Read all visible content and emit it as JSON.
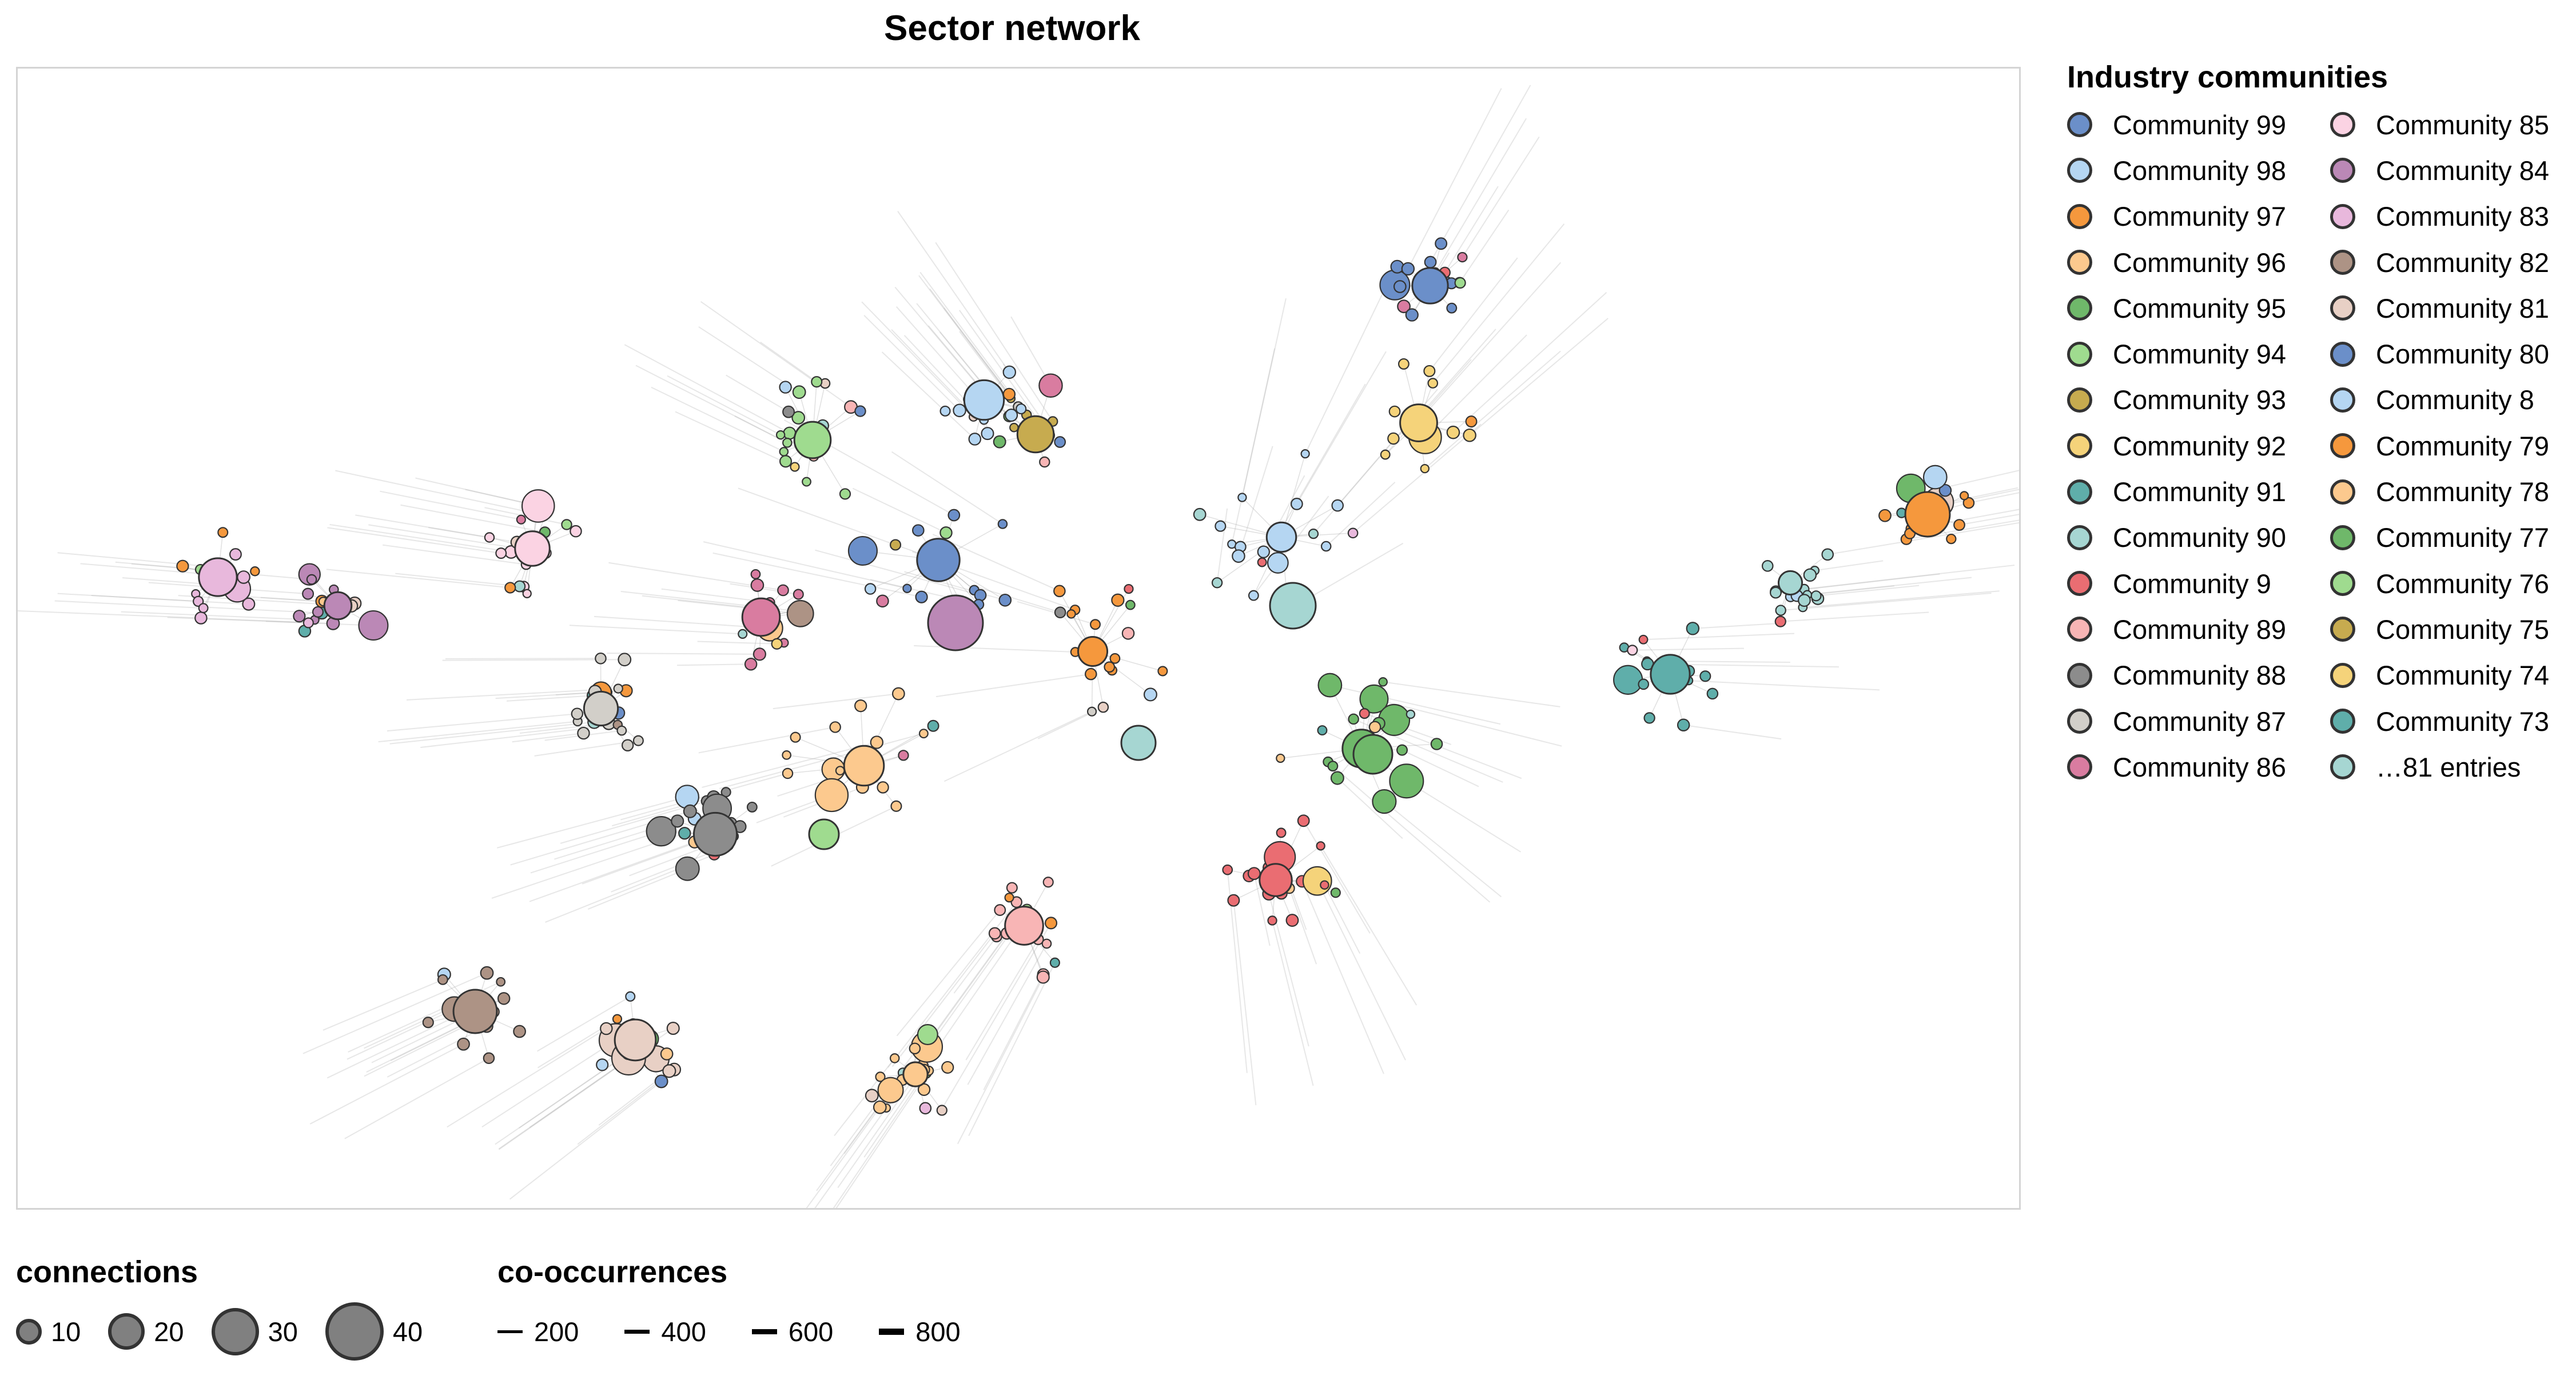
{
  "title": "Sector network",
  "legend": {
    "title": "Industry communities",
    "items": [
      {
        "label": "Community 99",
        "color": "#6b8fc9"
      },
      {
        "label": "Community 98",
        "color": "#b5d6f2"
      },
      {
        "label": "Community 97",
        "color": "#f5983d"
      },
      {
        "label": "Community 96",
        "color": "#fcc98e"
      },
      {
        "label": "Community 95",
        "color": "#6fb86a"
      },
      {
        "label": "Community 94",
        "color": "#9fdb8f"
      },
      {
        "label": "Community 93",
        "color": "#c7ab4f"
      },
      {
        "label": "Community 92",
        "color": "#f5d37a"
      },
      {
        "label": "Community 91",
        "color": "#5faeaa"
      },
      {
        "label": "Community 90",
        "color": "#a6d6d2"
      },
      {
        "label": "Community 9",
        "color": "#ea6d72"
      },
      {
        "label": "Community 89",
        "color": "#f8b5b5"
      },
      {
        "label": "Community 88",
        "color": "#8c8c8c"
      },
      {
        "label": "Community 87",
        "color": "#d2cfc9"
      },
      {
        "label": "Community 86",
        "color": "#d97ca0"
      },
      {
        "label": "Community 85",
        "color": "#fbd3e3"
      },
      {
        "label": "Community 84",
        "color": "#bb88b6"
      },
      {
        "label": "Community 83",
        "color": "#e8b8dc"
      },
      {
        "label": "Community 82",
        "color": "#ad9385"
      },
      {
        "label": "Community 81",
        "color": "#e8d0c5"
      },
      {
        "label": "Community 80",
        "color": "#6b8fc9"
      },
      {
        "label": "Community 8",
        "color": "#b5d6f2"
      },
      {
        "label": "Community 79",
        "color": "#f5983d"
      },
      {
        "label": "Community 78",
        "color": "#fcc98e"
      },
      {
        "label": "Community 77",
        "color": "#6fb86a"
      },
      {
        "label": "Community 76",
        "color": "#9fdb8f"
      },
      {
        "label": "Community 75",
        "color": "#c7ab4f"
      },
      {
        "label": "Community 74",
        "color": "#f5d37a"
      },
      {
        "label": "Community 73",
        "color": "#5faeaa"
      },
      {
        "label": "…81 entries",
        "color": "#a6d6d2"
      }
    ]
  },
  "size_legend": {
    "title": "connections",
    "items": [
      {
        "label": "10",
        "value": 10
      },
      {
        "label": "20",
        "value": 20
      },
      {
        "label": "30",
        "value": 30
      },
      {
        "label": "40",
        "value": 40
      }
    ]
  },
  "width_legend": {
    "title": "co-occurrences",
    "items": [
      {
        "label": "200",
        "value": 200
      },
      {
        "label": "400",
        "value": 400
      },
      {
        "label": "600",
        "value": 600
      },
      {
        "label": "800",
        "value": 800
      }
    ]
  }
}
